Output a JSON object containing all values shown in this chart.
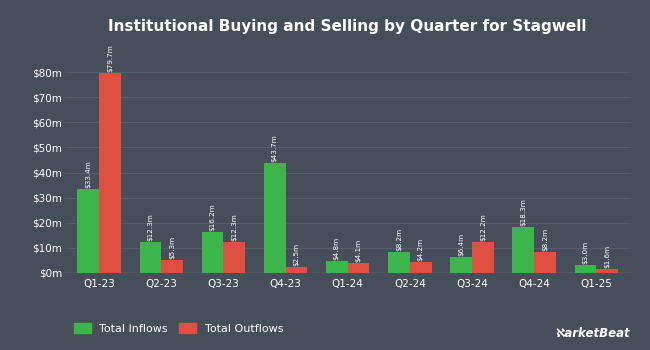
{
  "title": "Institutional Buying and Selling by Quarter for Stagwell",
  "quarters": [
    "Q1-23",
    "Q2-23",
    "Q3-23",
    "Q4-23",
    "Q1-24",
    "Q2-24",
    "Q3-24",
    "Q4-24",
    "Q1-25"
  ],
  "inflows": [
    33.4,
    12.3,
    16.2,
    43.7,
    4.8,
    8.2,
    6.4,
    18.3,
    3.0
  ],
  "outflows": [
    79.7,
    5.3,
    12.3,
    2.5,
    4.1,
    4.2,
    12.2,
    8.2,
    1.6
  ],
  "inflow_labels": [
    "$33.4m",
    "$12.3m",
    "$16.2m",
    "$43.7m",
    "$4.8m",
    "$8.2m",
    "$6.4m",
    "$18.3m",
    "$3.0m"
  ],
  "outflow_labels": [
    "$79.7m",
    "$5.3m",
    "$12.3m",
    "$2.5m",
    "$4.1m",
    "$4.2m",
    "$12.2m",
    "$8.2m",
    "$1.6m"
  ],
  "inflow_color": "#3cb54a",
  "outflow_color": "#e05040",
  "background_color": "#464e5a",
  "grid_color": "#555e6b",
  "text_color": "#ffffff",
  "ylabel_ticks": [
    "$0m",
    "$10m",
    "$20m",
    "$30m",
    "$40m",
    "$50m",
    "$60m",
    "$70m",
    "$80m"
  ],
  "ylim_max": 92,
  "bar_width": 0.35,
  "legend_inflow": "Total Inflows",
  "legend_outflow": "Total Outflows"
}
